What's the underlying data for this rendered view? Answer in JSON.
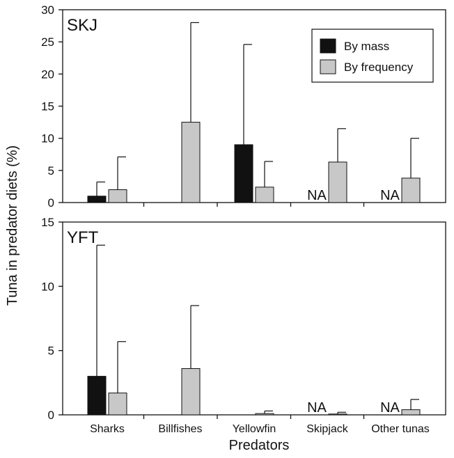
{
  "chart_data": [
    {
      "type": "bar",
      "panel_label": "SKJ",
      "categories": [
        "Sharks",
        "Billfishes",
        "Yellowfin",
        "Skipjack",
        "Other tunas"
      ],
      "series": [
        {
          "name": "By mass",
          "color": "#111111",
          "values": [
            1.0,
            null,
            9.0,
            null,
            null
          ],
          "error_upper": [
            3.2,
            null,
            24.6,
            null,
            null
          ]
        },
        {
          "name": "By frequency",
          "color": "#c8c8c8",
          "values": [
            2.0,
            12.5,
            2.4,
            6.3,
            3.8
          ],
          "error_upper": [
            7.1,
            28.0,
            6.4,
            11.5,
            10.0
          ]
        }
      ],
      "na_labels": [
        {
          "category": "Skipjack",
          "text": "NA"
        },
        {
          "category": "Other tunas",
          "text": "NA"
        }
      ],
      "ylim": [
        0,
        30
      ],
      "yticks": [
        0,
        5,
        10,
        15,
        20,
        25,
        30
      ],
      "legend": "top-right"
    },
    {
      "type": "bar",
      "panel_label": "YFT",
      "categories": [
        "Sharks",
        "Billfishes",
        "Yellowfin",
        "Skipjack",
        "Other tunas"
      ],
      "series": [
        {
          "name": "By mass",
          "color": "#111111",
          "values": [
            3.0,
            null,
            null,
            null,
            null
          ],
          "error_upper": [
            13.2,
            null,
            null,
            null,
            null
          ]
        },
        {
          "name": "By frequency",
          "color": "#c8c8c8",
          "values": [
            1.7,
            3.6,
            0.1,
            0.05,
            0.4
          ],
          "error_upper": [
            5.7,
            8.5,
            0.3,
            0.2,
            1.2
          ]
        }
      ],
      "na_labels": [
        {
          "category": "Skipjack",
          "text": "NA"
        },
        {
          "category": "Other tunas",
          "text": "NA"
        }
      ],
      "ylim": [
        0,
        15
      ],
      "yticks": [
        0,
        5,
        10,
        15
      ],
      "legend": "none"
    }
  ],
  "axes": {
    "ylabel": "Tuna in predator diets (%)",
    "xlabel": "Predators"
  }
}
